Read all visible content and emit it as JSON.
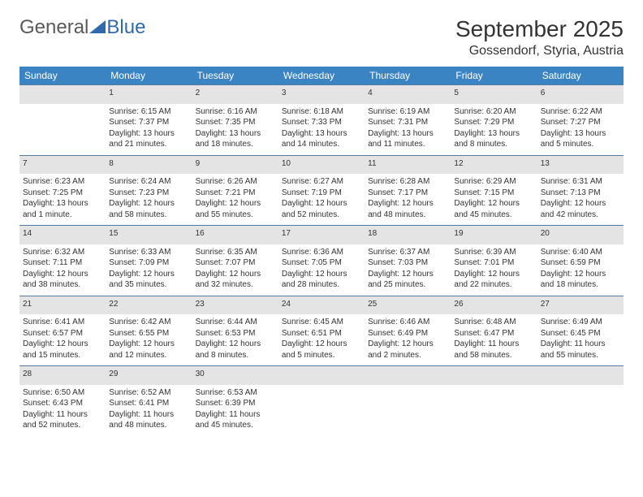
{
  "brand": {
    "part1": "General",
    "part2": "Blue"
  },
  "title": "September 2025",
  "location": "Gossendorf, Styria, Austria",
  "colors": {
    "header_bg": "#3b84c4",
    "header_text": "#ffffff",
    "daynum_bg": "#e4e4e4",
    "daynum_text": "#555555",
    "cell_text": "#333333",
    "rule": "#5a7a9a",
    "logo_gray": "#5a5a5a",
    "logo_blue": "#2f6aad"
  },
  "typography": {
    "title_fontsize": 28,
    "location_fontsize": 16,
    "header_fontsize": 12,
    "daynum_fontsize": 11,
    "cell_fontsize": 10
  },
  "day_headers": [
    "Sunday",
    "Monday",
    "Tuesday",
    "Wednesday",
    "Thursday",
    "Friday",
    "Saturday"
  ],
  "weeks": [
    {
      "nums": [
        "",
        "1",
        "2",
        "3",
        "4",
        "5",
        "6"
      ],
      "sunrise": [
        "",
        "Sunrise: 6:15 AM",
        "Sunrise: 6:16 AM",
        "Sunrise: 6:18 AM",
        "Sunrise: 6:19 AM",
        "Sunrise: 6:20 AM",
        "Sunrise: 6:22 AM"
      ],
      "sunset": [
        "",
        "Sunset: 7:37 PM",
        "Sunset: 7:35 PM",
        "Sunset: 7:33 PM",
        "Sunset: 7:31 PM",
        "Sunset: 7:29 PM",
        "Sunset: 7:27 PM"
      ],
      "day1": [
        "",
        "Daylight: 13 hours",
        "Daylight: 13 hours",
        "Daylight: 13 hours",
        "Daylight: 13 hours",
        "Daylight: 13 hours",
        "Daylight: 13 hours"
      ],
      "day2": [
        "",
        "and 21 minutes.",
        "and 18 minutes.",
        "and 14 minutes.",
        "and 11 minutes.",
        "and 8 minutes.",
        "and 5 minutes."
      ]
    },
    {
      "nums": [
        "7",
        "8",
        "9",
        "10",
        "11",
        "12",
        "13"
      ],
      "sunrise": [
        "Sunrise: 6:23 AM",
        "Sunrise: 6:24 AM",
        "Sunrise: 6:26 AM",
        "Sunrise: 6:27 AM",
        "Sunrise: 6:28 AM",
        "Sunrise: 6:29 AM",
        "Sunrise: 6:31 AM"
      ],
      "sunset": [
        "Sunset: 7:25 PM",
        "Sunset: 7:23 PM",
        "Sunset: 7:21 PM",
        "Sunset: 7:19 PM",
        "Sunset: 7:17 PM",
        "Sunset: 7:15 PM",
        "Sunset: 7:13 PM"
      ],
      "day1": [
        "Daylight: 13 hours",
        "Daylight: 12 hours",
        "Daylight: 12 hours",
        "Daylight: 12 hours",
        "Daylight: 12 hours",
        "Daylight: 12 hours",
        "Daylight: 12 hours"
      ],
      "day2": [
        "and 1 minute.",
        "and 58 minutes.",
        "and 55 minutes.",
        "and 52 minutes.",
        "and 48 minutes.",
        "and 45 minutes.",
        "and 42 minutes."
      ]
    },
    {
      "nums": [
        "14",
        "15",
        "16",
        "17",
        "18",
        "19",
        "20"
      ],
      "sunrise": [
        "Sunrise: 6:32 AM",
        "Sunrise: 6:33 AM",
        "Sunrise: 6:35 AM",
        "Sunrise: 6:36 AM",
        "Sunrise: 6:37 AM",
        "Sunrise: 6:39 AM",
        "Sunrise: 6:40 AM"
      ],
      "sunset": [
        "Sunset: 7:11 PM",
        "Sunset: 7:09 PM",
        "Sunset: 7:07 PM",
        "Sunset: 7:05 PM",
        "Sunset: 7:03 PM",
        "Sunset: 7:01 PM",
        "Sunset: 6:59 PM"
      ],
      "day1": [
        "Daylight: 12 hours",
        "Daylight: 12 hours",
        "Daylight: 12 hours",
        "Daylight: 12 hours",
        "Daylight: 12 hours",
        "Daylight: 12 hours",
        "Daylight: 12 hours"
      ],
      "day2": [
        "and 38 minutes.",
        "and 35 minutes.",
        "and 32 minutes.",
        "and 28 minutes.",
        "and 25 minutes.",
        "and 22 minutes.",
        "and 18 minutes."
      ]
    },
    {
      "nums": [
        "21",
        "22",
        "23",
        "24",
        "25",
        "26",
        "27"
      ],
      "sunrise": [
        "Sunrise: 6:41 AM",
        "Sunrise: 6:42 AM",
        "Sunrise: 6:44 AM",
        "Sunrise: 6:45 AM",
        "Sunrise: 6:46 AM",
        "Sunrise: 6:48 AM",
        "Sunrise: 6:49 AM"
      ],
      "sunset": [
        "Sunset: 6:57 PM",
        "Sunset: 6:55 PM",
        "Sunset: 6:53 PM",
        "Sunset: 6:51 PM",
        "Sunset: 6:49 PM",
        "Sunset: 6:47 PM",
        "Sunset: 6:45 PM"
      ],
      "day1": [
        "Daylight: 12 hours",
        "Daylight: 12 hours",
        "Daylight: 12 hours",
        "Daylight: 12 hours",
        "Daylight: 12 hours",
        "Daylight: 11 hours",
        "Daylight: 11 hours"
      ],
      "day2": [
        "and 15 minutes.",
        "and 12 minutes.",
        "and 8 minutes.",
        "and 5 minutes.",
        "and 2 minutes.",
        "and 58 minutes.",
        "and 55 minutes."
      ]
    },
    {
      "nums": [
        "28",
        "29",
        "30",
        "",
        "",
        "",
        ""
      ],
      "sunrise": [
        "Sunrise: 6:50 AM",
        "Sunrise: 6:52 AM",
        "Sunrise: 6:53 AM",
        "",
        "",
        "",
        ""
      ],
      "sunset": [
        "Sunset: 6:43 PM",
        "Sunset: 6:41 PM",
        "Sunset: 6:39 PM",
        "",
        "",
        "",
        ""
      ],
      "day1": [
        "Daylight: 11 hours",
        "Daylight: 11 hours",
        "Daylight: 11 hours",
        "",
        "",
        "",
        ""
      ],
      "day2": [
        "and 52 minutes.",
        "and 48 minutes.",
        "and 45 minutes.",
        "",
        "",
        "",
        ""
      ]
    }
  ]
}
